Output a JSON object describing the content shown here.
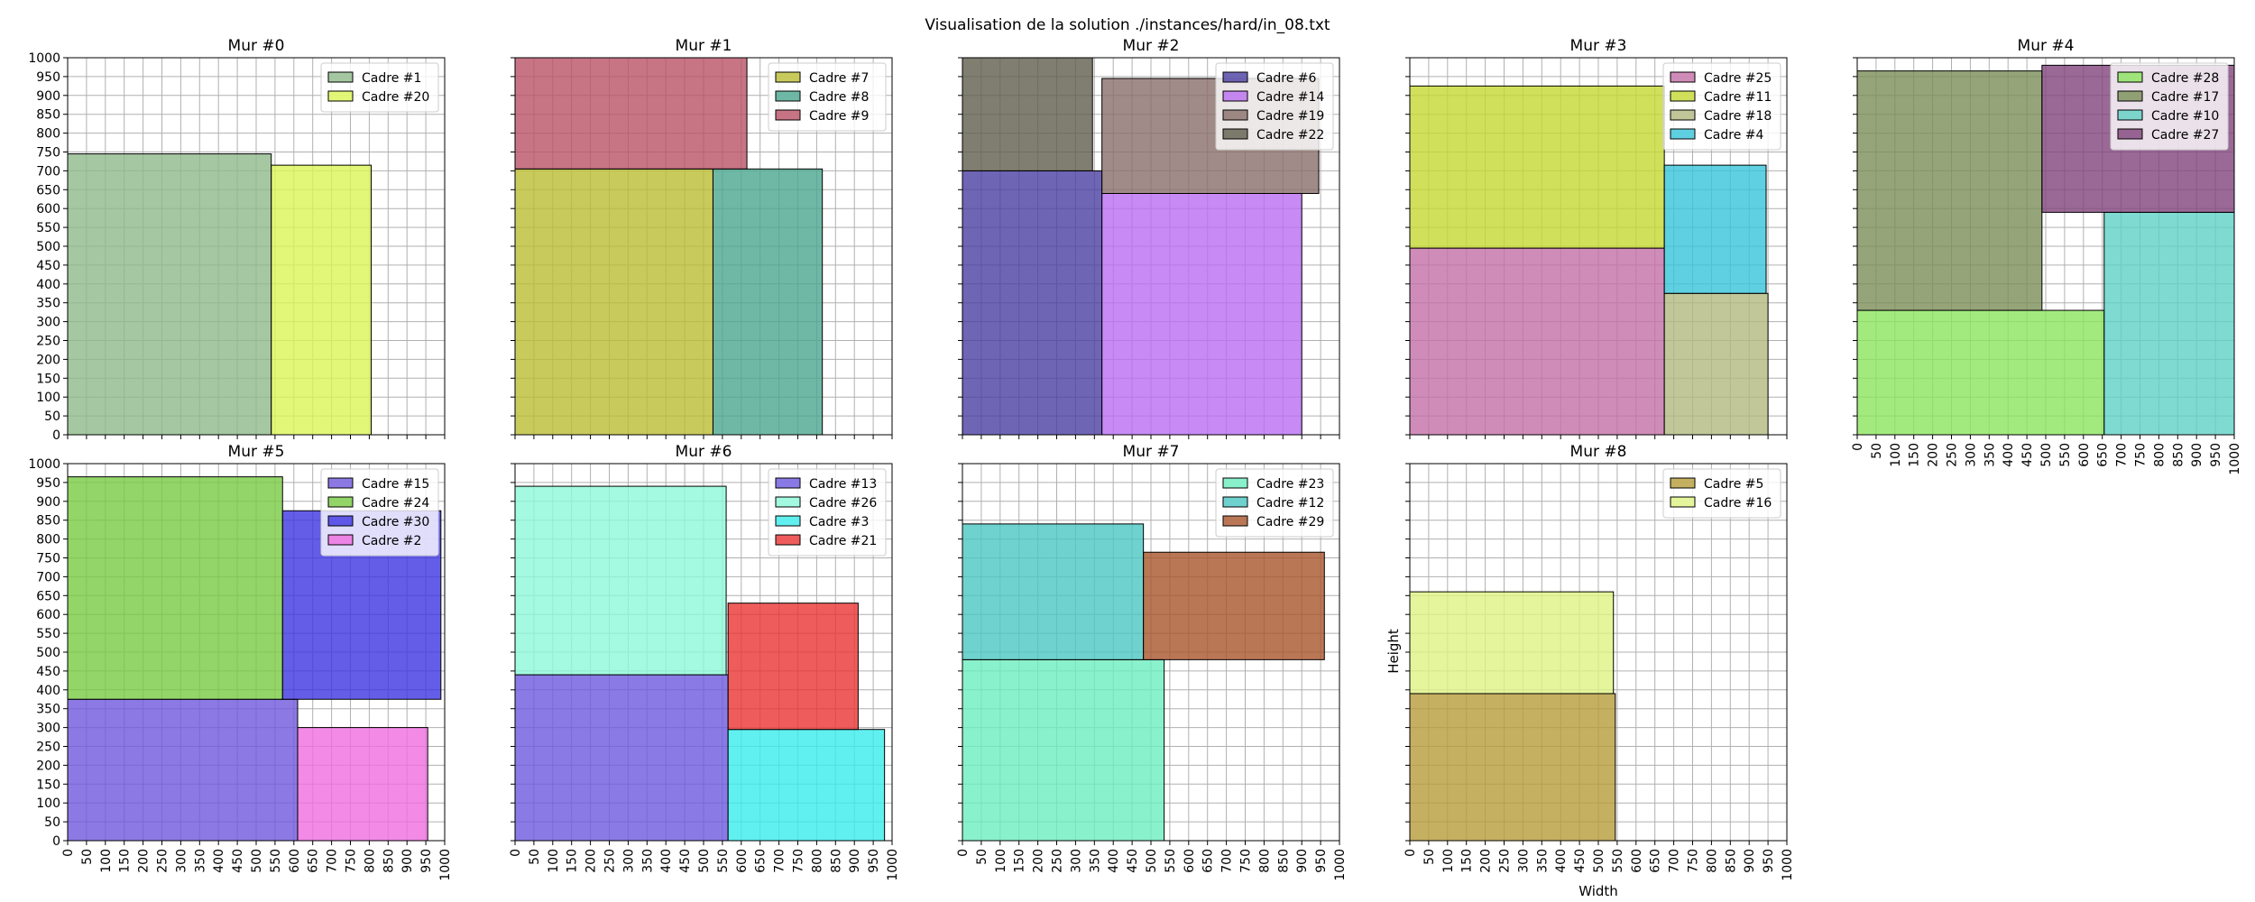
{
  "figure": {
    "suptitle": "Visualisation de la solution ./instances/hard/in_08.txt",
    "xlabel": "Width",
    "ylabel": "Height"
  },
  "chart_data": {
    "type": "bar",
    "title": "Visualisation de la solution ./instances/hard/in_08.txt",
    "xlabel": "Width",
    "ylabel": "Height",
    "xlim": [
      0,
      1000
    ],
    "ylim": [
      0,
      1000
    ],
    "ticks": [
      0,
      50,
      100,
      150,
      200,
      250,
      300,
      350,
      400,
      450,
      500,
      550,
      600,
      650,
      700,
      750,
      800,
      850,
      900,
      950,
      1000
    ],
    "grid": true,
    "legend_position": "top-right",
    "walls": [
      {
        "title": "Mur #0",
        "rects": [
          {
            "name": "Cadre #1",
            "x": 0,
            "y": 0,
            "w": 540,
            "h": 745,
            "color": "#8fb98a"
          },
          {
            "name": "Cadre #20",
            "x": 540,
            "y": 0,
            "w": 265,
            "h": 715,
            "color": "#dbf555"
          }
        ]
      },
      {
        "title": "Mur #1",
        "rects": [
          {
            "name": "Cadre #7",
            "x": 0,
            "y": 0,
            "w": 525,
            "h": 705,
            "color": "#bcbd33"
          },
          {
            "name": "Cadre #8",
            "x": 525,
            "y": 0,
            "w": 290,
            "h": 705,
            "color": "#4aa68e"
          },
          {
            "name": "Cadre #9",
            "x": 0,
            "y": 705,
            "w": 615,
            "h": 295,
            "color": "#b95266"
          }
        ]
      },
      {
        "title": "Mur #2",
        "rects": [
          {
            "name": "Cadre #6",
            "x": 0,
            "y": 0,
            "w": 370,
            "h": 700,
            "color": "#4b3fa3"
          },
          {
            "name": "Cadre #14",
            "x": 370,
            "y": 0,
            "w": 530,
            "h": 640,
            "color": "#ba6df1"
          },
          {
            "name": "Cadre #19",
            "x": 370,
            "y": 640,
            "w": 575,
            "h": 305,
            "color": "#8a6e6a"
          },
          {
            "name": "Cadre #22",
            "x": 0,
            "y": 700,
            "w": 345,
            "h": 300,
            "color": "#605e4c"
          }
        ]
      },
      {
        "title": "Mur #3",
        "rects": [
          {
            "name": "Cadre #25",
            "x": 0,
            "y": 0,
            "w": 675,
            "h": 495,
            "color": "#c46fa6"
          },
          {
            "name": "Cadre #11",
            "x": 0,
            "y": 495,
            "w": 675,
            "h": 430,
            "color": "#c5d832"
          },
          {
            "name": "Cadre #18",
            "x": 675,
            "y": 0,
            "w": 275,
            "h": 375,
            "color": "#b1b97e"
          },
          {
            "name": "Cadre #4",
            "x": 675,
            "y": 375,
            "w": 270,
            "h": 340,
            "color": "#37c4d9"
          }
        ]
      },
      {
        "title": "Mur #4",
        "rects": [
          {
            "name": "Cadre #28",
            "x": 0,
            "y": 0,
            "w": 655,
            "h": 330,
            "color": "#8be55e"
          },
          {
            "name": "Cadre #17",
            "x": 0,
            "y": 330,
            "w": 490,
            "h": 635,
            "color": "#7b8e58"
          },
          {
            "name": "Cadre #10",
            "x": 655,
            "y": 0,
            "w": 345,
            "h": 590,
            "color": "#5fd2c5"
          },
          {
            "name": "Cadre #27",
            "x": 490,
            "y": 590,
            "w": 510,
            "h": 390,
            "color": "#81447c"
          }
        ]
      },
      {
        "title": "Mur #5",
        "rects": [
          {
            "name": "Cadre #15",
            "x": 0,
            "y": 0,
            "w": 610,
            "h": 375,
            "color": "#6f57dd"
          },
          {
            "name": "Cadre #24",
            "x": 0,
            "y": 375,
            "w": 570,
            "h": 590,
            "color": "#78cb43"
          },
          {
            "name": "Cadre #30",
            "x": 570,
            "y": 375,
            "w": 420,
            "h": 500,
            "color": "#3d35e2"
          },
          {
            "name": "Cadre #2",
            "x": 610,
            "y": 0,
            "w": 345,
            "h": 300,
            "color": "#ef6de0"
          }
        ]
      },
      {
        "title": "Mur #6",
        "rects": [
          {
            "name": "Cadre #13",
            "x": 0,
            "y": 0,
            "w": 565,
            "h": 440,
            "color": "#6d59df"
          },
          {
            "name": "Cadre #26",
            "x": 0,
            "y": 440,
            "w": 560,
            "h": 500,
            "color": "#8cf9d9"
          },
          {
            "name": "Cadre #3",
            "x": 565,
            "y": 0,
            "w": 415,
            "h": 295,
            "color": "#38ecec"
          },
          {
            "name": "Cadre #21",
            "x": 565,
            "y": 295,
            "w": 345,
            "h": 335,
            "color": "#ea3533"
          }
        ]
      },
      {
        "title": "Mur #7",
        "rects": [
          {
            "name": "Cadre #23",
            "x": 0,
            "y": 0,
            "w": 535,
            "h": 480,
            "color": "#6beebe"
          },
          {
            "name": "Cadre #12",
            "x": 0,
            "y": 480,
            "w": 480,
            "h": 360,
            "color": "#4bc7c2"
          },
          {
            "name": "Cadre #29",
            "x": 480,
            "y": 480,
            "w": 480,
            "h": 285,
            "color": "#a9552c"
          }
        ]
      },
      {
        "title": "Mur #8",
        "rects": [
          {
            "name": "Cadre #5",
            "x": 0,
            "y": 0,
            "w": 545,
            "h": 390,
            "color": "#b79c3a"
          },
          {
            "name": "Cadre #16",
            "x": 0,
            "y": 390,
            "w": 540,
            "h": 270,
            "color": "#def283"
          }
        ]
      }
    ]
  }
}
